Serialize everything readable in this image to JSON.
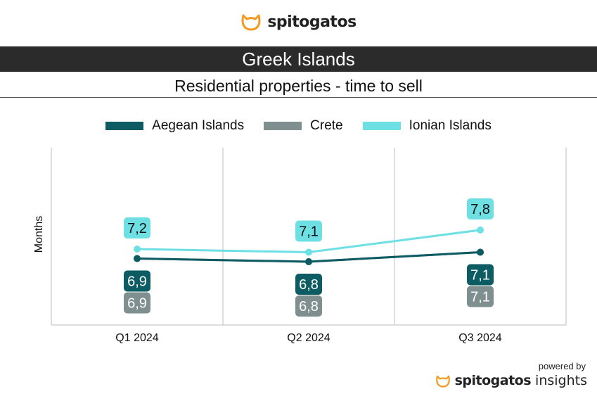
{
  "brand": {
    "name": "spitogatos",
    "logo_icon": "cat-head-icon",
    "accent": "#f39a1e"
  },
  "header": {
    "title": "Greek Islands",
    "subtitle": "Residential properties - time to sell"
  },
  "footer": {
    "powered_by": "powered by",
    "brand": "spitogatos",
    "product": "insights"
  },
  "chart_data": {
    "type": "line",
    "title": "Greek Islands",
    "subtitle": "Residential properties - time to sell",
    "ylabel": "Months",
    "xlabel": "",
    "categories": [
      "Q1 2024",
      "Q2 2024",
      "Q3 2024"
    ],
    "series": [
      {
        "name": "Aegean Islands",
        "color": "#0e5c63",
        "values": [
          6.9,
          6.8,
          7.1
        ],
        "labels": [
          "6,9",
          "6,8",
          "7,1"
        ]
      },
      {
        "name": "Crete",
        "color": "#7f8f8f",
        "values": [
          6.9,
          6.8,
          7.1
        ],
        "labels": [
          "6,9",
          "6,8",
          "7,1"
        ]
      },
      {
        "name": "Ionian Islands",
        "color": "#6ee0e4",
        "values": [
          7.2,
          7.1,
          7.8
        ],
        "labels": [
          "7,2",
          "7,1",
          "7,8"
        ]
      }
    ],
    "ylim": [
      4.8,
      10.4
    ],
    "grid": "vertical",
    "legend": "top"
  }
}
